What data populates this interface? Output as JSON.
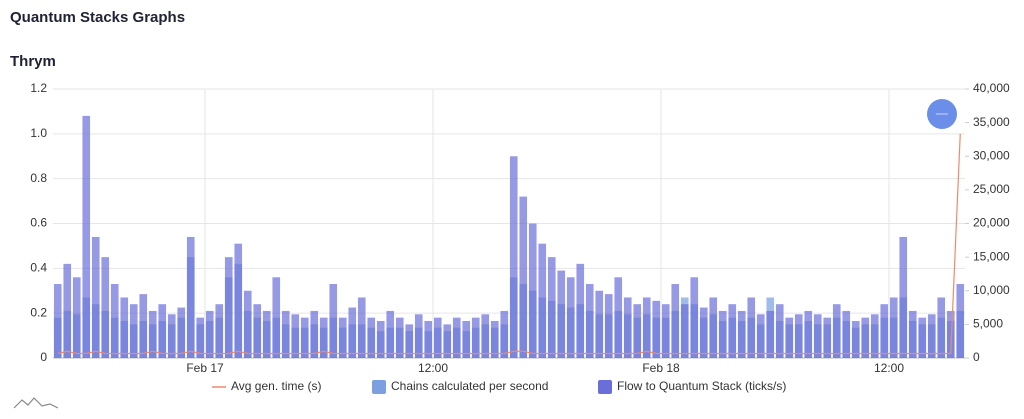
{
  "header": {
    "title": "Quantum Stacks Graphs"
  },
  "chart_data": {
    "type": "bar",
    "title": "Thrym",
    "x": [
      0.25,
      0.75,
      1.25,
      1.75,
      2.25,
      2.75,
      3.25,
      3.75,
      4.25,
      4.75,
      5.25,
      5.75,
      6.25,
      6.75,
      7.25,
      7.75,
      8.25,
      8.75,
      9.25,
      9.75,
      10.25,
      10.75,
      11.25,
      11.75,
      12.25,
      12.75,
      13.25,
      13.75,
      14.25,
      14.75,
      15.25,
      15.75,
      16.25,
      16.75,
      17.25,
      17.75,
      18.25,
      18.75,
      19.25,
      19.75,
      20.25,
      20.75,
      21.25,
      21.75,
      22.25,
      22.75,
      23.25,
      23.75,
      24.25,
      24.75,
      25.25,
      25.75,
      26.25,
      26.75,
      27.25,
      27.75,
      28.25,
      28.75,
      29.25,
      29.75,
      30.25,
      30.75,
      31.25,
      31.75,
      32.25,
      32.75,
      33.25,
      33.75,
      34.25,
      34.75,
      35.25,
      35.75,
      36.25,
      36.75,
      37.25,
      37.75,
      38.25,
      38.75,
      39.25,
      39.75,
      40.25,
      40.75,
      41.25,
      41.75,
      42.25,
      42.75,
      43.25,
      43.75,
      44.25,
      44.75,
      45.25,
      45.75,
      46.25,
      46.75,
      47.25,
      47.75
    ],
    "xlim": [
      0,
      48
    ],
    "xticks": [
      {
        "value": 8,
        "label": "Feb 17"
      },
      {
        "value": 20,
        "label": "12:00"
      },
      {
        "value": 32,
        "label": "Feb 18"
      },
      {
        "value": 44,
        "label": "12:00"
      }
    ],
    "ylim": [
      0,
      1.2
    ],
    "yticks": [
      0,
      0.2,
      0.4,
      0.6,
      0.8,
      {
        "value": 1,
        "label": "1.0"
      },
      1.2
    ],
    "y2lim": [
      0,
      40000
    ],
    "y2ticks": [
      0,
      {
        "value": 5000,
        "label": "5,000"
      },
      {
        "value": 10000,
        "label": "10,000"
      },
      {
        "value": 15000,
        "label": "15,000"
      },
      {
        "value": 20000,
        "label": "20,000"
      },
      {
        "value": 25000,
        "label": "25,000"
      },
      {
        "value": 30000,
        "label": "30,000"
      },
      {
        "value": 35000,
        "label": "35,000"
      },
      {
        "value": 40000,
        "label": "40,000"
      }
    ],
    "grid": true,
    "legend": "bottom",
    "series": [
      {
        "name": "Avg gen. time (s)",
        "type": "line",
        "color": "#f0896b",
        "values": [
          0.02,
          0.03,
          0.02,
          0.02,
          0.03,
          0.02,
          0.02,
          0.02,
          0.02,
          0.02,
          0.03,
          0.02,
          0.02,
          0.02,
          0.03,
          0.02,
          0.02,
          0.02,
          0.02,
          0.03,
          0.02,
          0.02,
          0.02,
          0.02,
          0.02,
          0.02,
          0.02,
          0.02,
          0.03,
          0.02,
          0.02,
          0.02,
          0.02,
          0.02,
          0.02,
          0.02,
          0.02,
          0.02,
          0.02,
          0.02,
          0.02,
          0.02,
          0.02,
          0.02,
          0.02,
          0.02,
          0.02,
          0.02,
          0.03,
          0.03,
          0.02,
          0.02,
          0.02,
          0.02,
          0.02,
          0.02,
          0.02,
          0.02,
          0.02,
          0.02,
          0.02,
          0.02,
          0.03,
          0.02,
          0.02,
          0.02,
          0.02,
          0.02,
          0.02,
          0.02,
          0.02,
          0.02,
          0.02,
          0.02,
          0.02,
          0.02,
          0.02,
          0.02,
          0.02,
          0.02,
          0.02,
          0.02,
          0.02,
          0.02,
          0.02,
          0.02,
          0.02,
          0.02,
          0.02,
          0.02,
          0.02,
          0.02,
          0.02,
          0.02,
          0.02,
          1.0
        ]
      },
      {
        "name": "Chains calculated per second",
        "type": "bar",
        "axis": "y2",
        "color": "#7b9fe0",
        "values": [
          6000,
          7000,
          6500,
          9000,
          8000,
          7000,
          6000,
          5500,
          5000,
          5500,
          5000,
          5500,
          5000,
          6000,
          15000,
          5000,
          5500,
          6000,
          12000,
          14000,
          7000,
          6000,
          5500,
          6000,
          5000,
          4500,
          4500,
          5000,
          4500,
          6000,
          4500,
          5000,
          5000,
          4500,
          4000,
          4500,
          4500,
          4000,
          4500,
          4000,
          4500,
          4000,
          4500,
          4000,
          4500,
          5000,
          4500,
          5000,
          12000,
          11000,
          10000,
          9000,
          8500,
          8000,
          7500,
          8000,
          7000,
          6500,
          6500,
          7000,
          6500,
          6000,
          6500,
          6000,
          6000,
          7000,
          9000,
          8000,
          6000,
          6500,
          5500,
          6000,
          5500,
          6000,
          5000,
          9000,
          5500,
          5000,
          5000,
          5500,
          5000,
          5000,
          6000,
          5500,
          4500,
          5000,
          5000,
          6000,
          6000,
          9000,
          5500,
          5000,
          5000,
          6000,
          5500,
          7000
        ]
      },
      {
        "name": "Flow to Quantum Stack (ticks/s)",
        "type": "bar",
        "axis": "y2",
        "color": "#6a6ed8",
        "values": [
          11000,
          14000,
          12000,
          36000,
          18000,
          15000,
          11000,
          9000,
          8000,
          9500,
          7000,
          8000,
          6500,
          7500,
          18000,
          6000,
          7000,
          8000,
          15000,
          17000,
          10000,
          8000,
          7000,
          12000,
          7000,
          6500,
          6000,
          7000,
          6000,
          11000,
          6000,
          7500,
          9000,
          6000,
          5500,
          7000,
          6000,
          5000,
          6500,
          5500,
          6000,
          5000,
          6000,
          5500,
          6000,
          6500,
          5500,
          7000,
          30000,
          24000,
          20000,
          17000,
          15000,
          13000,
          12000,
          14000,
          11000,
          10000,
          9500,
          12000,
          9000,
          8000,
          9000,
          8500,
          8000,
          11000,
          8000,
          12000,
          7500,
          9000,
          7000,
          8000,
          7000,
          9000,
          6500,
          7000,
          8000,
          6000,
          6500,
          7000,
          6500,
          6000,
          8000,
          7000,
          5500,
          6000,
          6500,
          8000,
          9000,
          18000,
          7000,
          6000,
          6500,
          9000,
          7000,
          11000
        ]
      }
    ]
  }
}
